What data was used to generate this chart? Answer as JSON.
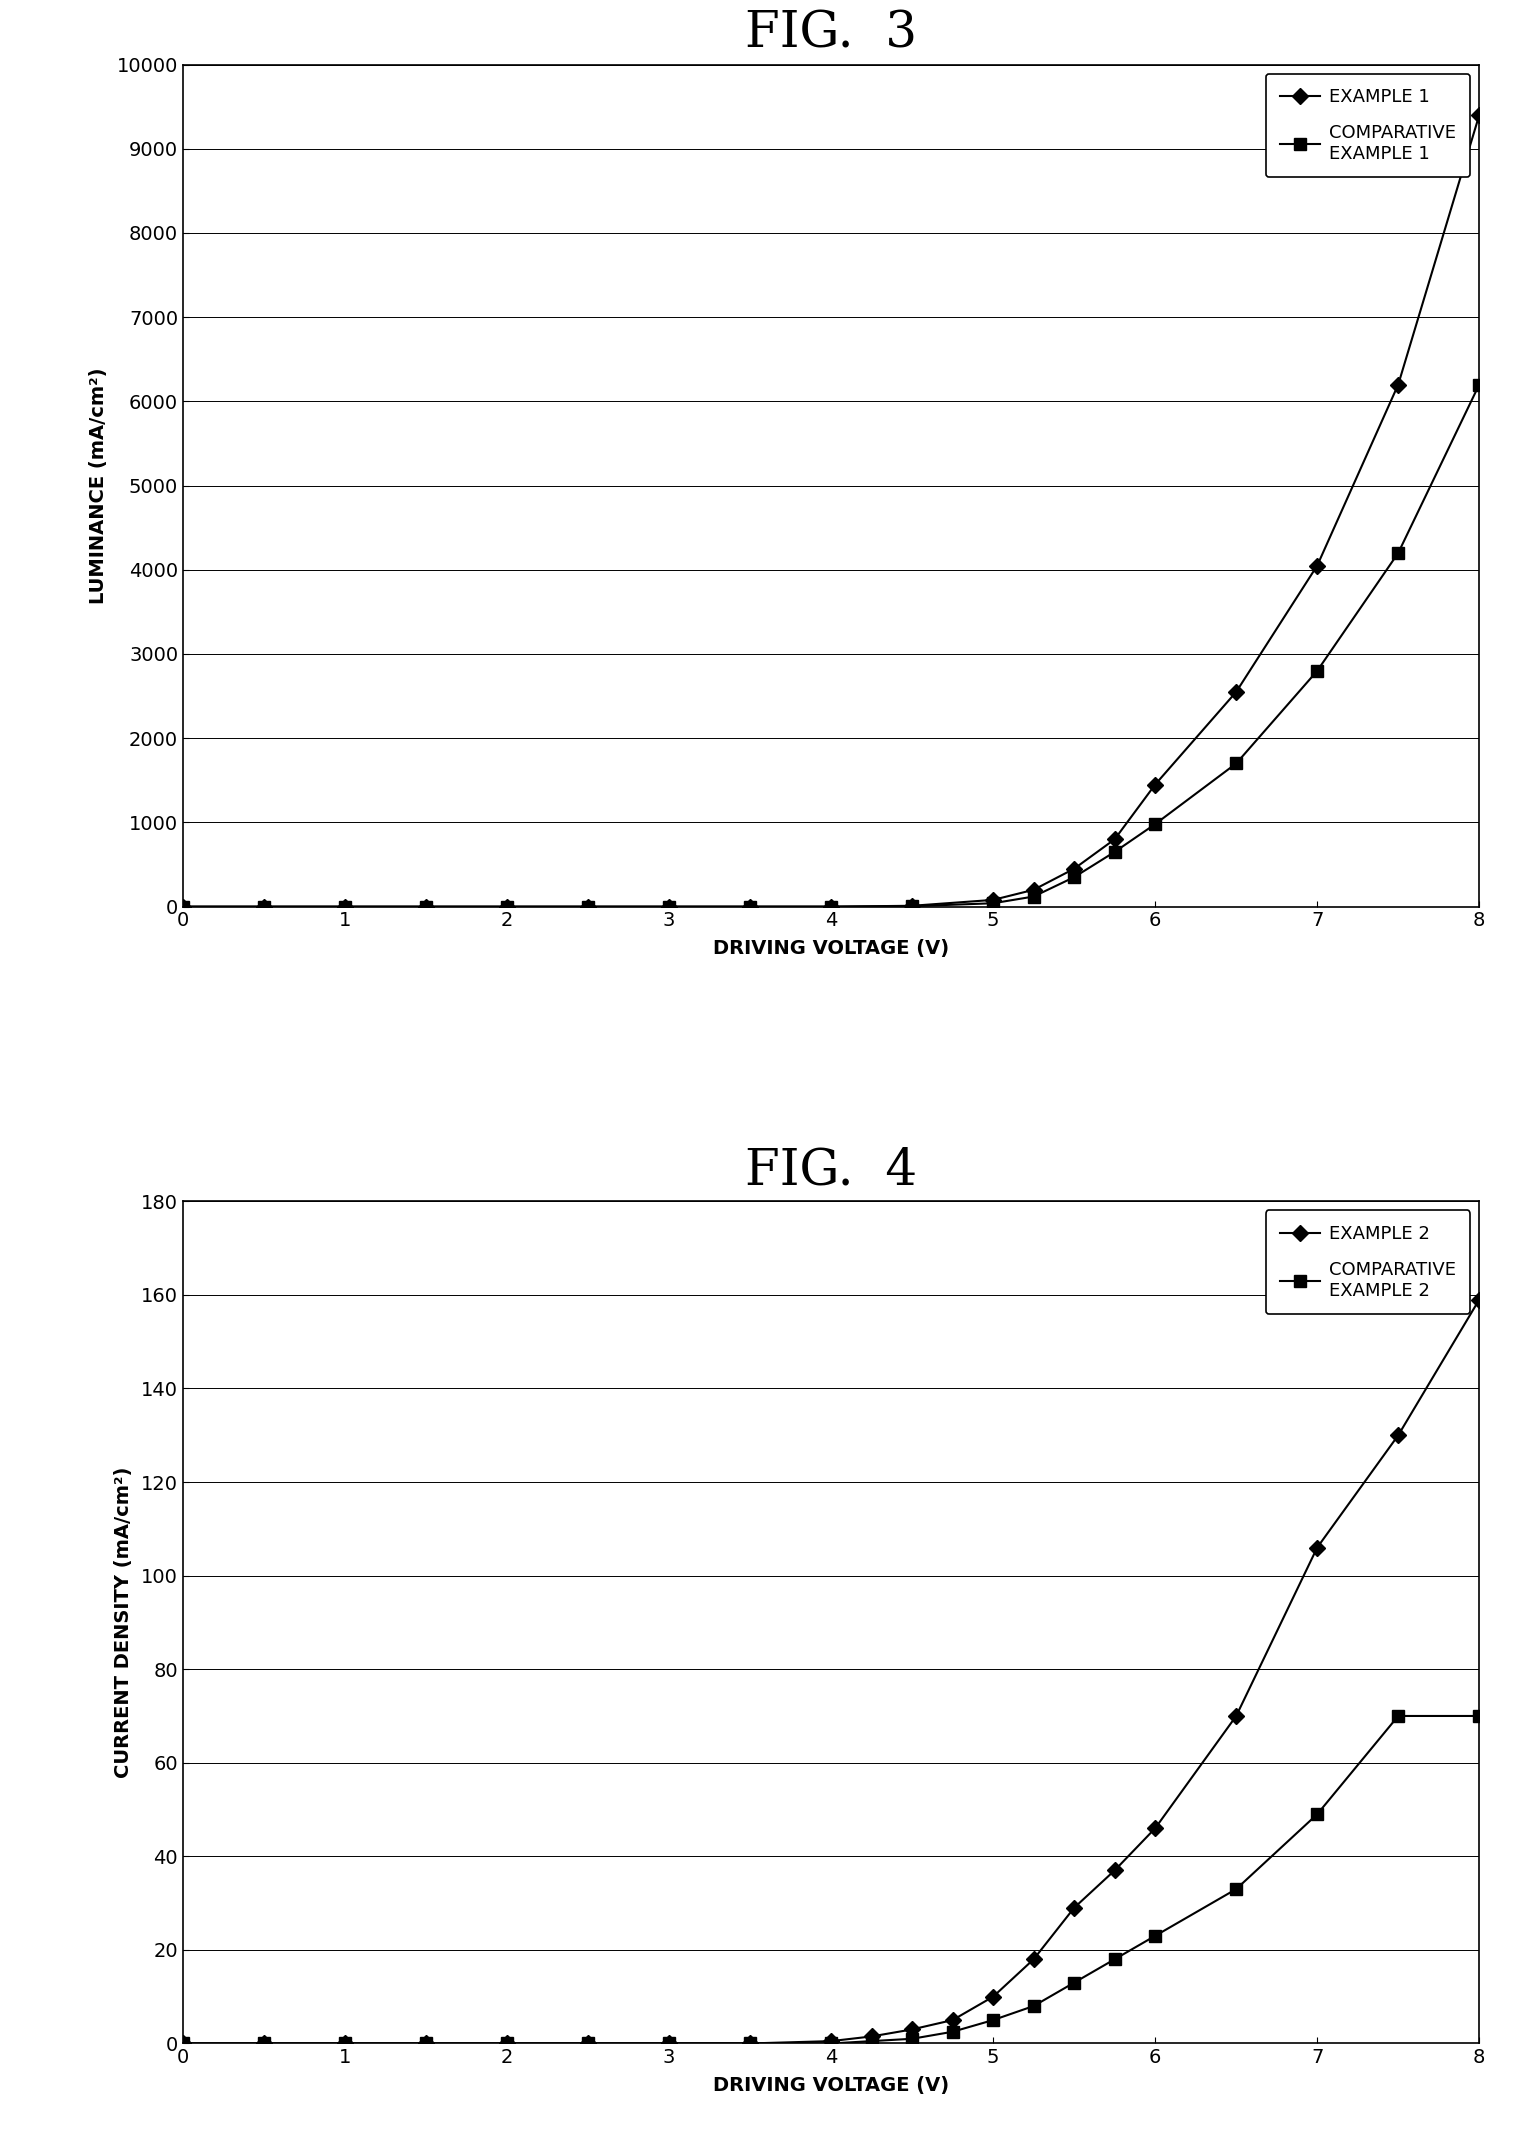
{
  "fig3": {
    "title": "FIG.  3",
    "xlabel": "DRIVING VOLTAGE (V)",
    "ylabel": "LUMINANCE (mA/cm²)",
    "xlim": [
      0,
      8
    ],
    "ylim": [
      0,
      10000
    ],
    "yticks": [
      0,
      1000,
      2000,
      3000,
      4000,
      5000,
      6000,
      7000,
      8000,
      9000,
      10000
    ],
    "xticks": [
      0,
      1,
      2,
      3,
      4,
      5,
      6,
      7,
      8
    ],
    "example1_x": [
      0,
      0.5,
      1,
      1.5,
      2,
      2.5,
      3,
      3.5,
      4,
      4.5,
      5,
      5.25,
      5.5,
      5.75,
      6,
      6.5,
      7,
      7.5,
      8
    ],
    "example1_y": [
      0,
      0,
      0,
      0,
      0,
      0,
      0,
      0,
      0,
      10,
      80,
      200,
      450,
      800,
      1450,
      2550,
      4050,
      6200,
      9400
    ],
    "comp1_x": [
      0,
      0.5,
      1,
      1.5,
      2,
      2.5,
      3,
      3.5,
      4,
      4.5,
      5,
      5.25,
      5.5,
      5.75,
      6,
      6.5,
      7,
      7.5,
      8
    ],
    "comp1_y": [
      0,
      0,
      0,
      0,
      0,
      0,
      0,
      0,
      0,
      5,
      40,
      120,
      350,
      650,
      980,
      1700,
      2800,
      4200,
      6200
    ],
    "legend1_label": "EXAMPLE 1",
    "legend2_label": "COMPARATIVE\nEXAMPLE 1"
  },
  "fig4": {
    "title": "FIG.  4",
    "xlabel": "DRIVING VOLTAGE (V)",
    "ylabel": "CURRENT DENSITY (mA/cm²)",
    "xlim": [
      0,
      8
    ],
    "ylim": [
      0,
      180
    ],
    "yticks": [
      0,
      20,
      40,
      60,
      80,
      100,
      120,
      140,
      160,
      180
    ],
    "xticks": [
      0,
      1,
      2,
      3,
      4,
      5,
      6,
      7,
      8
    ],
    "example2_x": [
      0,
      0.5,
      1,
      1.5,
      2,
      2.5,
      3,
      3.5,
      4,
      4.25,
      4.5,
      4.75,
      5,
      5.25,
      5.5,
      5.75,
      6,
      6.5,
      7,
      7.5,
      8
    ],
    "example2_y": [
      0,
      0,
      0,
      0,
      0,
      0,
      0,
      0,
      0.5,
      1.5,
      3,
      5,
      10,
      18,
      29,
      37,
      46,
      70,
      106,
      130,
      159
    ],
    "comp2_x": [
      0,
      0.5,
      1,
      1.5,
      2,
      2.5,
      3,
      3.5,
      4,
      4.25,
      4.5,
      4.75,
      5,
      5.25,
      5.5,
      5.75,
      6,
      6.5,
      7,
      7.5,
      8
    ],
    "comp2_y": [
      0,
      0,
      0,
      0,
      0,
      0,
      0,
      0,
      0,
      0.5,
      1,
      2.5,
      5,
      8,
      13,
      18,
      23,
      33,
      49,
      70,
      70
    ],
    "legend1_label": "EXAMPLE 2",
    "legend2_label": "COMPARATIVE\nEXAMPLE 2"
  },
  "background_color": "#ffffff",
  "line_color": "#000000",
  "marker_diamond": "D",
  "marker_square": "s",
  "marker_size": 8,
  "line_width": 1.5,
  "title_fontsize": 36,
  "label_fontsize": 14,
  "tick_fontsize": 14,
  "legend_fontsize": 13
}
